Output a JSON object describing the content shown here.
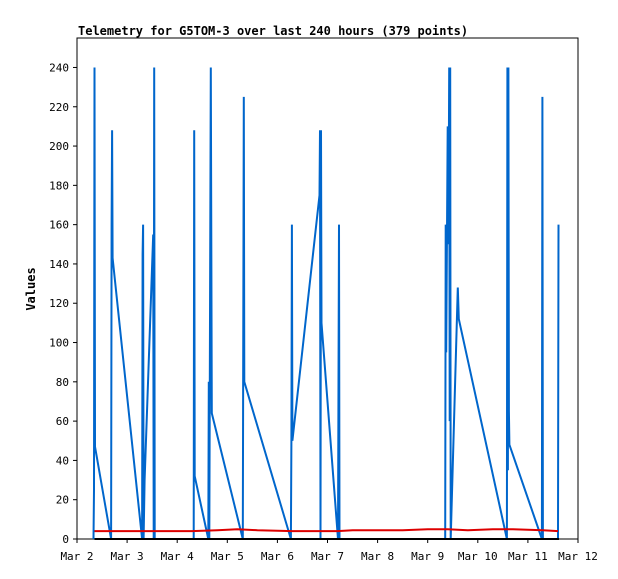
{
  "chart_data": {
    "type": "line",
    "title": "Telemetry for G5TOM-3 over last 240 hours (379 points)",
    "xlabel": "",
    "ylabel": "Values",
    "ylim": [
      0,
      255
    ],
    "y_ticks": [
      0,
      20,
      40,
      60,
      80,
      100,
      120,
      140,
      160,
      180,
      200,
      220,
      240
    ],
    "x_ticks": [
      "Mar 2",
      "Mar 3",
      "Mar 4",
      "Mar 5",
      "Mar 6",
      "Mar 7",
      "Mar 8",
      "Mar 9",
      "Mar 10",
      "Mar 11",
      "Mar 12"
    ],
    "xlim_days": [
      0,
      10
    ],
    "grid": false,
    "legend": "none",
    "series": [
      {
        "color": "#0066cc",
        "points": [
          [
            0.33,
            0
          ],
          [
            0.34,
            25
          ],
          [
            0.35,
            240
          ],
          [
            0.36,
            47
          ],
          [
            0.68,
            0
          ],
          [
            0.69,
            160
          ],
          [
            0.7,
            208
          ],
          [
            0.71,
            143
          ],
          [
            1.3,
            0
          ],
          [
            1.31,
            145
          ],
          [
            1.32,
            160
          ],
          [
            1.33,
            0
          ],
          [
            1.35,
            30
          ],
          [
            1.52,
            155
          ],
          [
            1.53,
            0
          ],
          [
            1.54,
            240
          ],
          [
            1.55,
            0
          ],
          [
            2.33,
            0
          ],
          [
            2.34,
            208
          ],
          [
            2.35,
            32
          ],
          [
            2.62,
            0
          ],
          [
            2.63,
            80
          ],
          [
            2.64,
            0
          ],
          [
            2.67,
            240
          ],
          [
            2.69,
            64
          ],
          [
            3.31,
            0
          ],
          [
            3.33,
            225
          ],
          [
            3.34,
            80
          ],
          [
            4.27,
            0
          ],
          [
            4.28,
            50
          ],
          [
            4.29,
            160
          ],
          [
            4.3,
            50
          ],
          [
            4.84,
            175
          ],
          [
            4.85,
            208
          ],
          [
            4.86,
            0
          ],
          [
            4.87,
            208
          ],
          [
            4.88,
            110
          ],
          [
            5.21,
            0
          ],
          [
            5.22,
            80
          ],
          [
            5.23,
            160
          ],
          [
            5.24,
            0
          ],
          [
            7.35,
            0
          ],
          [
            7.36,
            160
          ],
          [
            7.37,
            95
          ],
          [
            7.4,
            210
          ],
          [
            7.41,
            150
          ],
          [
            7.42,
            180
          ],
          [
            7.43,
            240
          ],
          [
            7.44,
            60
          ],
          [
            7.45,
            240
          ],
          [
            7.46,
            0
          ],
          [
            7.6,
            128
          ],
          [
            7.62,
            112
          ],
          [
            8.58,
            0
          ],
          [
            8.59,
            240
          ],
          [
            8.6,
            35
          ],
          [
            8.61,
            240
          ],
          [
            8.62,
            65
          ],
          [
            8.63,
            48
          ],
          [
            9.28,
            0
          ],
          [
            9.29,
            225
          ],
          [
            9.3,
            0
          ],
          [
            9.6,
            0
          ],
          [
            9.61,
            160
          ]
        ]
      },
      {
        "color": "#dd0000",
        "points": [
          [
            0.35,
            4
          ],
          [
            1.3,
            4
          ],
          [
            2.3,
            4
          ],
          [
            2.8,
            4.5
          ],
          [
            3.2,
            5
          ],
          [
            3.6,
            4.5
          ],
          [
            4.3,
            4
          ],
          [
            5.2,
            4
          ],
          [
            5.5,
            4.5
          ],
          [
            6.5,
            4.5
          ],
          [
            7.0,
            5
          ],
          [
            7.4,
            5
          ],
          [
            7.8,
            4.5
          ],
          [
            8.3,
            5
          ],
          [
            8.7,
            5
          ],
          [
            9.3,
            4.5
          ],
          [
            9.6,
            4
          ]
        ]
      }
    ]
  }
}
